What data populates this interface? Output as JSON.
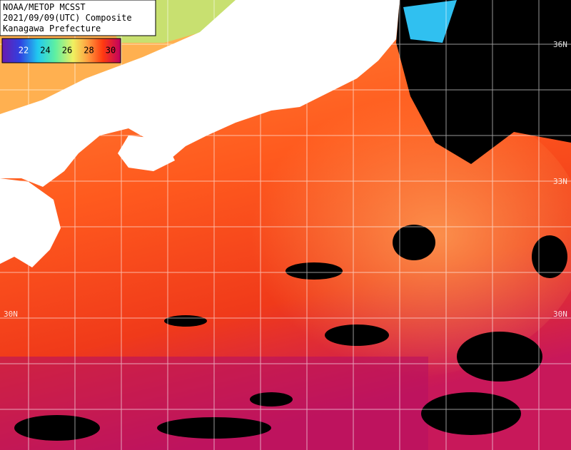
{
  "title_box": {
    "lines": [
      "NOAA/METOP MCSST",
      "2021/09/09(UTC) Composite",
      "Kanagawa Prefecture"
    ]
  },
  "colorbar": {
    "ticks": [
      22,
      24,
      26,
      28,
      30
    ]
  },
  "latitude_labels": [
    "36N",
    "33N",
    "30N"
  ]
}
